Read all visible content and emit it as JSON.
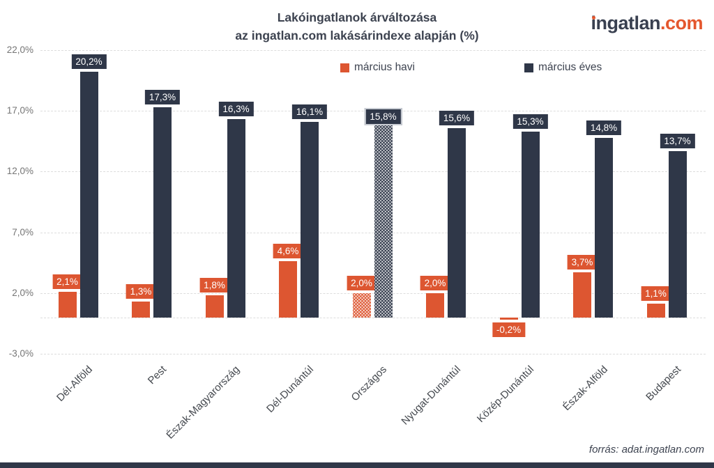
{
  "header": {
    "title_line1": "Lakóingatlanok árváltozása",
    "title_line2": "az ingatlan.com lakásárindexe alapján (%)",
    "logo_name": "ingatlan",
    "logo_tld": ".com"
  },
  "legend": {
    "items": [
      {
        "label": "március havi",
        "color": "#dd5631"
      },
      {
        "label": "március éves",
        "color": "#2f3748"
      }
    ]
  },
  "footer": {
    "source": "forrás: adat.ingatlan.com"
  },
  "colors": {
    "accent_orange": "#dd5631",
    "brand_navy": "#2f3748",
    "gridline": "#dcdcdc",
    "axis_text": "#757575"
  },
  "chart_data": {
    "type": "bar",
    "title": "Lakóingatlanok árváltozása az ingatlan.com lakásárindexe alapján (%)",
    "xlabel": "",
    "ylabel": "",
    "categories": [
      "Dél-Alföld",
      "Pest",
      "Észak-Magyarország",
      "Dél-Dunántúl",
      "Országos",
      "Nyugat-Dunántúl",
      "Közép-Dunántúl",
      "Észak-Alföld",
      "Budapest"
    ],
    "series": [
      {
        "name": "március havi",
        "color": "#dd5631",
        "values": [
          2.1,
          1.3,
          1.8,
          4.6,
          2.0,
          2.0,
          -0.2,
          3.7,
          1.1
        ],
        "labels": [
          "2,1%",
          "1,3%",
          "1,8%",
          "4,6%",
          "2,0%",
          "2,0%",
          "-0,2%",
          "3,7%",
          "1,1%"
        ]
      },
      {
        "name": "március éves",
        "color": "#2f3748",
        "values": [
          20.2,
          17.3,
          16.3,
          16.1,
          15.8,
          15.6,
          15.3,
          14.8,
          13.7
        ],
        "labels": [
          "20,2%",
          "17,3%",
          "16,3%",
          "16,1%",
          "15,8%",
          "15,6%",
          "15,3%",
          "14,8%",
          "13,7%"
        ]
      }
    ],
    "highlight_category": "Országos",
    "highlight_index": 4,
    "highlight_style": "dotted-pattern",
    "y_ticks": [
      {
        "label": "22,0%",
        "value": 22
      },
      {
        "label": "17,0%",
        "value": 17
      },
      {
        "label": "12,0%",
        "value": 12
      },
      {
        "label": "7,0%",
        "value": 7
      },
      {
        "label": "2,0%",
        "value": 2
      },
      {
        "label": "-3,0%",
        "value": -3
      }
    ],
    "ylim": [
      -3,
      22
    ],
    "grid": true,
    "legend_position": "top"
  }
}
